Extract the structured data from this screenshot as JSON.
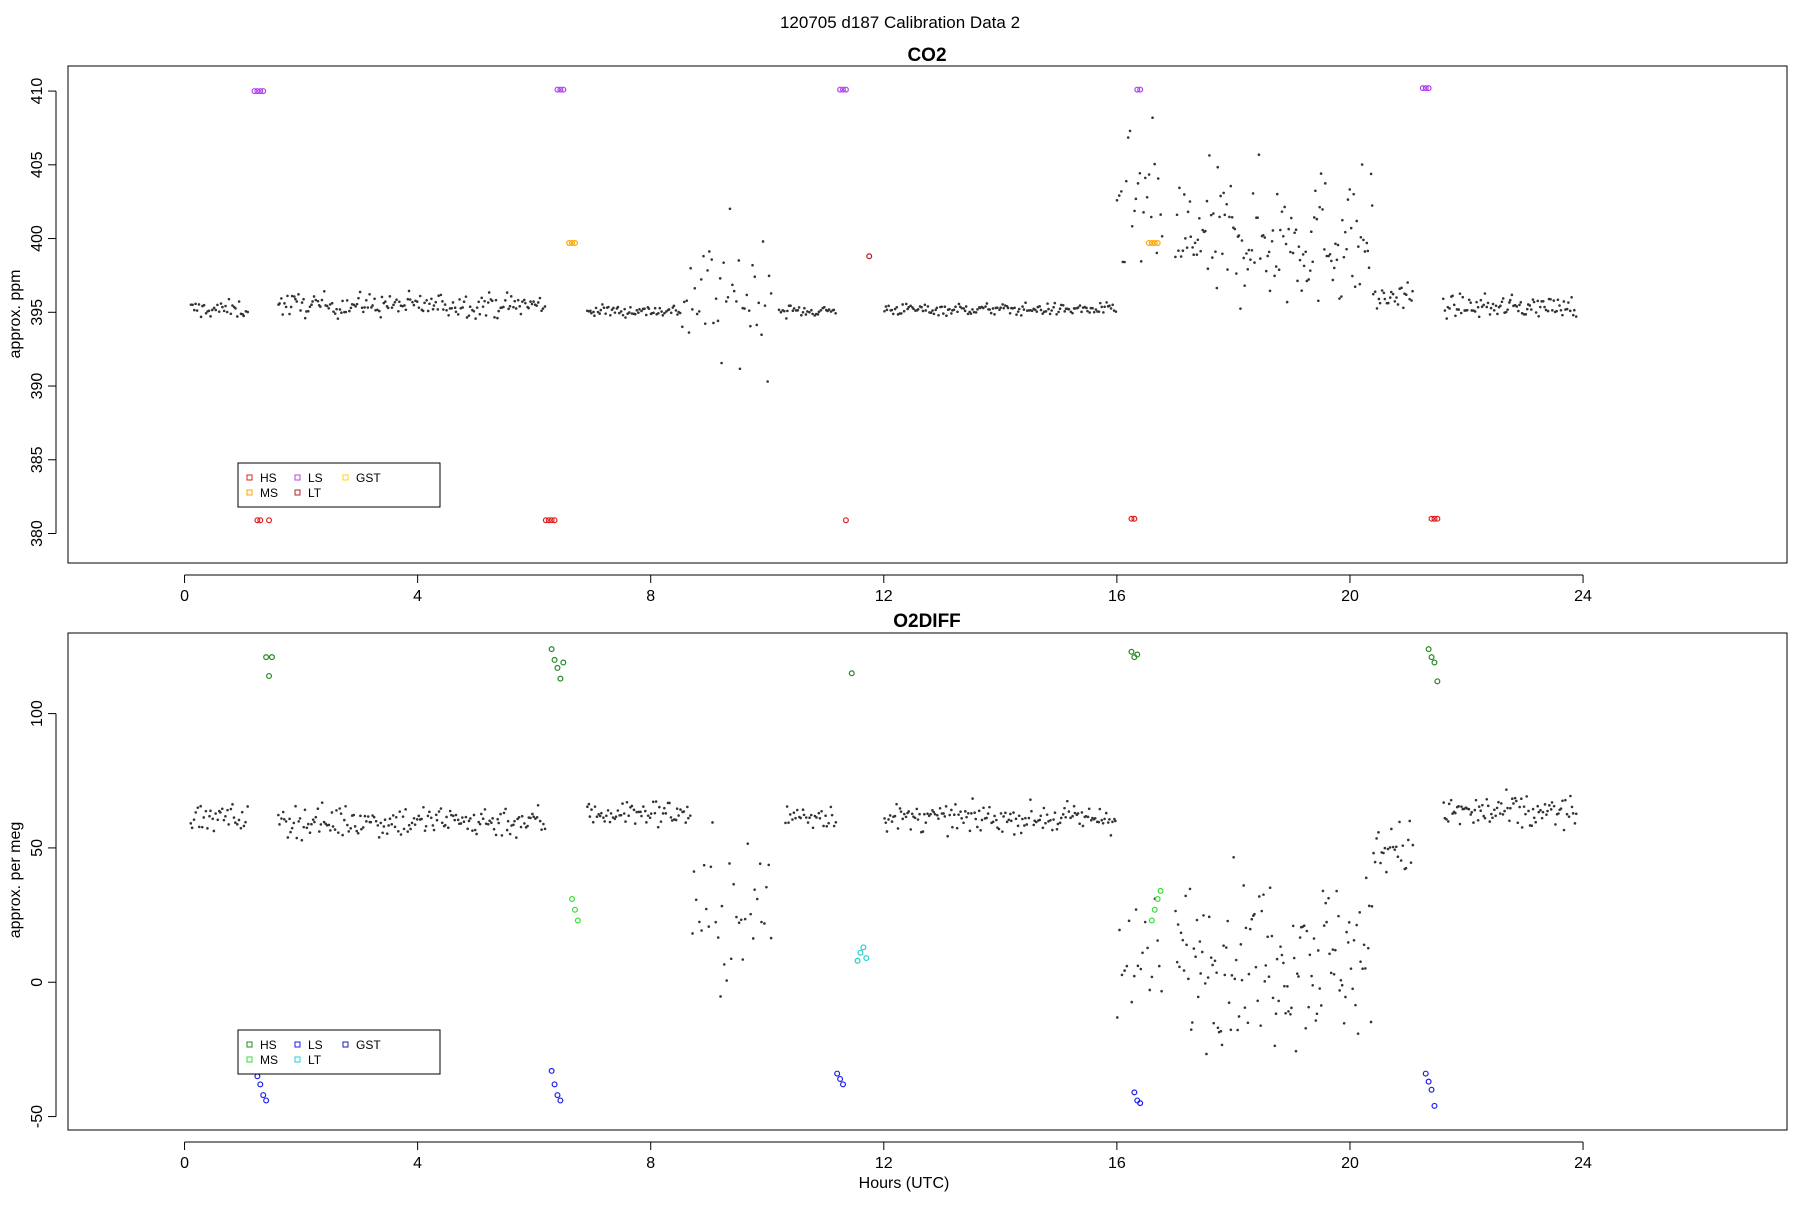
{
  "figure": {
    "title": "120705   d187   Calibration Data 2",
    "xlabel": "Hours (UTC)"
  },
  "chart_data": [
    {
      "type": "scatter",
      "title": "CO2",
      "xlabel": "",
      "ylabel": "approx. ppm",
      "xlim": [
        -2,
        27.5
      ],
      "ylim": [
        378.0,
        411.7
      ],
      "xticks": [
        0,
        4,
        8,
        12,
        16,
        20,
        24
      ],
      "xtick_labels": [
        "0",
        "4",
        "8",
        "12",
        "16",
        "20",
        "24"
      ],
      "yticks": [
        380,
        385,
        390,
        395,
        400,
        405,
        410
      ],
      "ytick_labels": [
        "380",
        "385",
        "390",
        "395",
        "400",
        "405",
        "410"
      ],
      "grid": false,
      "legend": {
        "placement": "bottom-left",
        "entries": [
          {
            "label": "HS",
            "color": "#e02020"
          },
          {
            "label": "MS",
            "color": "#ffa500"
          },
          {
            "label": "LS",
            "color": "#b040f0"
          },
          {
            "label": "LT",
            "color": "#b22222"
          },
          {
            "label": "GST",
            "color": "#ffd700"
          }
        ]
      },
      "background_trace": {
        "color": "#333333",
        "segments": [
          {
            "x_start": 0.1,
            "x_end": 1.1,
            "baseline": 395.2,
            "noise": 0.6,
            "n": 35
          },
          {
            "x_start": 1.6,
            "x_end": 6.2,
            "baseline": 395.5,
            "noise": 0.8,
            "n": 170
          },
          {
            "x_start": 6.9,
            "x_end": 8.5,
            "baseline": 395.1,
            "noise": 0.4,
            "n": 60
          },
          {
            "x_start": 8.5,
            "x_end": 10.1,
            "baseline": 396.0,
            "noise": 4.5,
            "n": 45
          },
          {
            "x_start": 10.2,
            "x_end": 11.2,
            "baseline": 395.1,
            "noise": 0.4,
            "n": 35
          },
          {
            "x_start": 12.0,
            "x_end": 16.0,
            "baseline": 395.2,
            "noise": 0.4,
            "n": 150
          },
          {
            "x_start": 16.0,
            "x_end": 16.8,
            "baseline": 402.0,
            "noise": 5.0,
            "n": 25
          },
          {
            "x_start": 17.0,
            "x_end": 20.4,
            "baseline": 400.0,
            "noise": 4.5,
            "n": 140
          },
          {
            "x_start": 20.4,
            "x_end": 21.1,
            "baseline": 396.0,
            "noise": 1.0,
            "n": 25
          },
          {
            "x_start": 21.6,
            "x_end": 23.9,
            "baseline": 395.4,
            "noise": 0.7,
            "n": 90
          }
        ]
      },
      "series": [
        {
          "name": "HS",
          "color": "#e02020",
          "points": [
            [
              1.25,
              380.9
            ],
            [
              1.3,
              380.9
            ],
            [
              1.45,
              380.9
            ],
            [
              6.2,
              380.9
            ],
            [
              6.25,
              380.9
            ],
            [
              6.3,
              380.9
            ],
            [
              6.35,
              380.9
            ],
            [
              11.35,
              380.9
            ],
            [
              16.25,
              381.0
            ],
            [
              16.3,
              381.0
            ],
            [
              21.4,
              381.0
            ],
            [
              21.45,
              381.0
            ],
            [
              21.5,
              381.0
            ]
          ]
        },
        {
          "name": "MS",
          "color": "#ffa500",
          "points": [
            [
              6.6,
              399.7
            ],
            [
              6.65,
              399.7
            ],
            [
              6.7,
              399.7
            ],
            [
              16.55,
              399.7
            ],
            [
              16.6,
              399.7
            ],
            [
              16.65,
              399.7
            ],
            [
              16.7,
              399.7
            ]
          ]
        },
        {
          "name": "LS",
          "color": "#b040f0",
          "points": [
            [
              1.2,
              410.0
            ],
            [
              1.25,
              410.0
            ],
            [
              1.3,
              410.0
            ],
            [
              1.35,
              410.0
            ],
            [
              6.4,
              410.1
            ],
            [
              6.45,
              410.1
            ],
            [
              6.5,
              410.1
            ],
            [
              11.25,
              410.1
            ],
            [
              11.3,
              410.1
            ],
            [
              11.35,
              410.1
            ],
            [
              16.35,
              410.1
            ],
            [
              16.4,
              410.1
            ],
            [
              21.25,
              410.2
            ],
            [
              21.3,
              410.2
            ],
            [
              21.35,
              410.2
            ]
          ]
        },
        {
          "name": "LT",
          "color": "#b22222",
          "points": [
            [
              11.75,
              398.8
            ]
          ]
        }
      ]
    },
    {
      "type": "scatter",
      "title": "O2DIFF",
      "xlabel": "Hours (UTC)",
      "ylabel": "approx. per meg",
      "xlim": [
        -2,
        27.5
      ],
      "ylim": [
        -55,
        130
      ],
      "xticks": [
        0,
        4,
        8,
        12,
        16,
        20,
        24
      ],
      "xtick_labels": [
        "0",
        "4",
        "8",
        "12",
        "16",
        "20",
        "24"
      ],
      "yticks": [
        -50,
        0,
        50,
        100
      ],
      "ytick_labels": [
        "-50",
        "0",
        "50",
        "100"
      ],
      "grid": false,
      "legend": {
        "placement": "bottom-left",
        "entries": [
          {
            "label": "HS",
            "color": "#228b22"
          },
          {
            "label": "MS",
            "color": "#32e032"
          },
          {
            "label": "LS",
            "color": "#1e1ef0"
          },
          {
            "label": "LT",
            "color": "#20d0d0"
          },
          {
            "label": "GST",
            "color": "#1e1eb0"
          }
        ]
      },
      "background_trace": {
        "color": "#333333",
        "segments": [
          {
            "x_start": 0.1,
            "x_end": 1.1,
            "baseline": 61,
            "noise": 5,
            "n": 35
          },
          {
            "x_start": 1.6,
            "x_end": 6.2,
            "baseline": 60,
            "noise": 6,
            "n": 170
          },
          {
            "x_start": 6.9,
            "x_end": 8.7,
            "baseline": 63,
            "noise": 5,
            "n": 65
          },
          {
            "x_start": 8.7,
            "x_end": 10.1,
            "baseline": 25,
            "noise": 30,
            "n": 35
          },
          {
            "x_start": 10.3,
            "x_end": 11.2,
            "baseline": 62,
            "noise": 5,
            "n": 30
          },
          {
            "x_start": 12.0,
            "x_end": 16.0,
            "baseline": 61,
            "noise": 5,
            "n": 150
          },
          {
            "x_start": 16.0,
            "x_end": 16.8,
            "baseline": 5,
            "noise": 25,
            "n": 20
          },
          {
            "x_start": 17.0,
            "x_end": 20.4,
            "baseline": 10,
            "noise": 30,
            "n": 140
          },
          {
            "x_start": 20.4,
            "x_end": 21.1,
            "baseline": 50,
            "noise": 10,
            "n": 25
          },
          {
            "x_start": 21.6,
            "x_end": 23.9,
            "baseline": 63,
            "noise": 7,
            "n": 90
          }
        ]
      },
      "series": [
        {
          "name": "HS",
          "color": "#228b22",
          "points": [
            [
              1.4,
              121
            ],
            [
              1.45,
              114
            ],
            [
              1.5,
              121
            ],
            [
              6.3,
              124
            ],
            [
              6.35,
              120
            ],
            [
              6.4,
              117
            ],
            [
              6.45,
              113
            ],
            [
              6.5,
              119
            ],
            [
              11.45,
              115
            ],
            [
              16.25,
              123
            ],
            [
              16.3,
              121
            ],
            [
              16.35,
              122
            ],
            [
              21.35,
              124
            ],
            [
              21.4,
              121
            ],
            [
              21.45,
              119
            ],
            [
              21.5,
              112
            ]
          ]
        },
        {
          "name": "MS",
          "color": "#32e032",
          "points": [
            [
              6.65,
              31
            ],
            [
              6.7,
              27
            ],
            [
              6.75,
              23
            ],
            [
              16.6,
              23
            ],
            [
              16.65,
              27
            ],
            [
              16.7,
              31
            ],
            [
              16.75,
              34
            ]
          ]
        },
        {
          "name": "LS",
          "color": "#1e1ef0",
          "points": [
            [
              1.2,
              -31
            ],
            [
              1.25,
              -35
            ],
            [
              1.3,
              -38
            ],
            [
              1.35,
              -42
            ],
            [
              1.4,
              -44
            ],
            [
              6.3,
              -33
            ],
            [
              6.35,
              -38
            ],
            [
              6.4,
              -42
            ],
            [
              6.45,
              -44
            ],
            [
              11.2,
              -34
            ],
            [
              11.25,
              -36
            ],
            [
              11.3,
              -38
            ],
            [
              16.3,
              -41
            ],
            [
              16.35,
              -44
            ],
            [
              16.4,
              -45
            ],
            [
              21.3,
              -34
            ],
            [
              21.35,
              -37
            ],
            [
              21.4,
              -40
            ],
            [
              21.45,
              -46
            ]
          ]
        },
        {
          "name": "LT",
          "color": "#20d0d0",
          "points": [
            [
              11.55,
              8
            ],
            [
              11.6,
              11
            ],
            [
              11.65,
              13
            ],
            [
              11.7,
              9
            ]
          ]
        }
      ]
    }
  ]
}
